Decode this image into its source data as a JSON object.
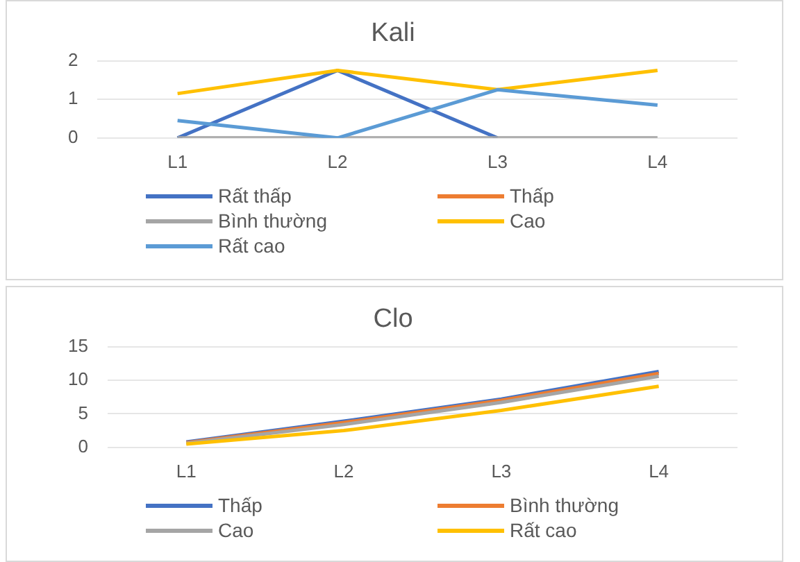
{
  "chart_data": [
    {
      "type": "line",
      "title": "Kali",
      "categories": [
        "L1",
        "L2",
        "L3",
        "L4"
      ],
      "ylim": [
        0,
        2
      ],
      "yticks": [
        0,
        1,
        2
      ],
      "grid": "y",
      "legend": "bottom",
      "marker": "none",
      "line_style": "solid",
      "series": [
        {
          "name": "Rất thấp",
          "color": "#4472c4",
          "values": [
            0,
            1.75,
            0,
            null
          ]
        },
        {
          "name": "Thấp",
          "color": "#ed7d31",
          "values": [
            null,
            null,
            null,
            null
          ]
        },
        {
          "name": "Bình thường",
          "color": "#a5a5a5",
          "values": [
            0,
            0,
            0,
            0
          ]
        },
        {
          "name": "Cao",
          "color": "#ffc000",
          "values": [
            1.15,
            1.75,
            1.25,
            1.75
          ]
        },
        {
          "name": "Rất cao",
          "color": "#5b9bd5",
          "values": [
            0.45,
            0,
            1.25,
            0.85
          ]
        }
      ]
    },
    {
      "type": "line",
      "title": "Clo",
      "categories": [
        "L1",
        "L2",
        "L3",
        "L4"
      ],
      "ylim": [
        0,
        15
      ],
      "yticks": [
        0,
        5,
        10,
        15
      ],
      "grid": "y",
      "legend": "bottom",
      "marker": "none",
      "line_style": "solid",
      "series": [
        {
          "name": "Thấp",
          "color": "#4472c4",
          "values": [
            0.8,
            3.9,
            7.2,
            11.3
          ]
        },
        {
          "name": "Bình thường",
          "color": "#ed7d31",
          "values": [
            0.7,
            3.7,
            7.0,
            11.0
          ]
        },
        {
          "name": "Cao",
          "color": "#a5a5a5",
          "values": [
            0.6,
            3.4,
            6.7,
            10.6
          ]
        },
        {
          "name": "Rất cao",
          "color": "#ffc000",
          "values": [
            0.5,
            2.5,
            5.5,
            9.1
          ]
        }
      ]
    }
  ]
}
